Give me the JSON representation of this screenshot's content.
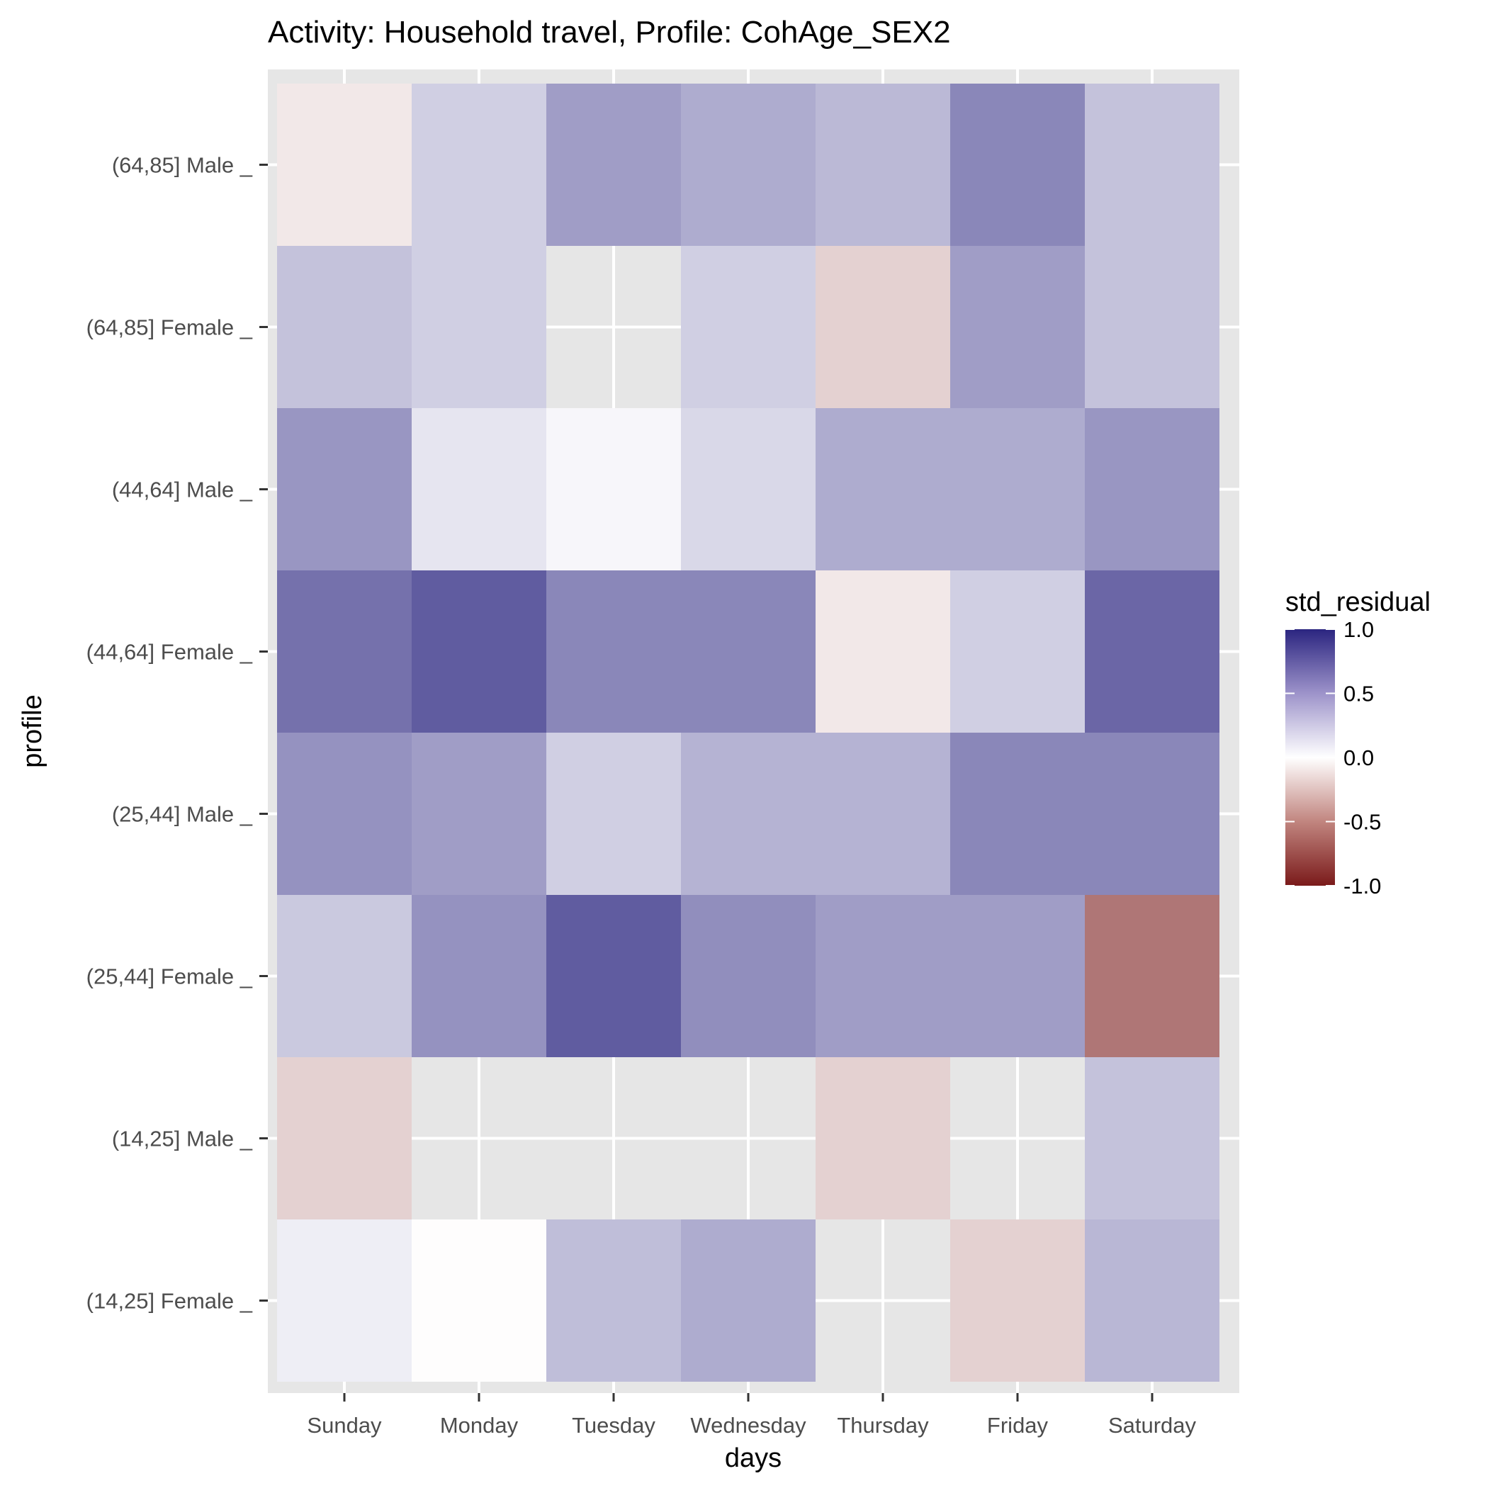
{
  "chart_data": {
    "type": "heatmap",
    "title": "Activity: Household travel, Profile: CohAge_SEX2",
    "xlabel": "days",
    "ylabel": "profile",
    "x_categories": [
      "Sunday",
      "Monday",
      "Tuesday",
      "Wednesday",
      "Thursday",
      "Friday",
      "Saturday"
    ],
    "y_categories": [
      "(64,85] Male _",
      "(64,85] Female _",
      "(44,64] Male _",
      "(44,64] Female _",
      "(25,44] Male _",
      "(25,44] Female _",
      "(14,25] Male _",
      "(14,25] Female _"
    ],
    "values": [
      [
        -0.1,
        0.22,
        0.45,
        0.38,
        0.32,
        0.55,
        0.28
      ],
      [
        0.28,
        0.22,
        null,
        0.22,
        -0.2,
        0.45,
        0.28
      ],
      [
        0.48,
        0.12,
        0.04,
        0.18,
        0.38,
        0.38,
        0.48
      ],
      [
        0.65,
        0.75,
        0.55,
        0.55,
        -0.1,
        0.22,
        0.7
      ],
      [
        0.5,
        0.45,
        0.22,
        0.35,
        0.35,
        0.55,
        0.55
      ],
      [
        0.25,
        0.5,
        0.75,
        0.52,
        0.45,
        0.45,
        -0.6
      ],
      [
        -0.2,
        null,
        null,
        null,
        -0.2,
        null,
        0.28
      ],
      [
        0.08,
        -0.01,
        0.3,
        0.38,
        null,
        -0.2,
        0.33
      ]
    ],
    "legend": {
      "title": "std_residual",
      "position": "right",
      "ticks": [
        "1.0",
        "0.5",
        "0.0",
        "-0.5",
        "-1.0"
      ],
      "tick_values": [
        1.0,
        0.5,
        0.0,
        -0.5,
        -1.0
      ],
      "limits": [
        -1.0,
        1.0
      ]
    },
    "colors": {
      "low": "#7a1a1a",
      "mid": "#ffffff",
      "high": "#2b2580",
      "panel_background": "#e6e6e6",
      "grid": "#ffffff",
      "tick_label": "#4d4d4d"
    },
    "grid": true
  }
}
